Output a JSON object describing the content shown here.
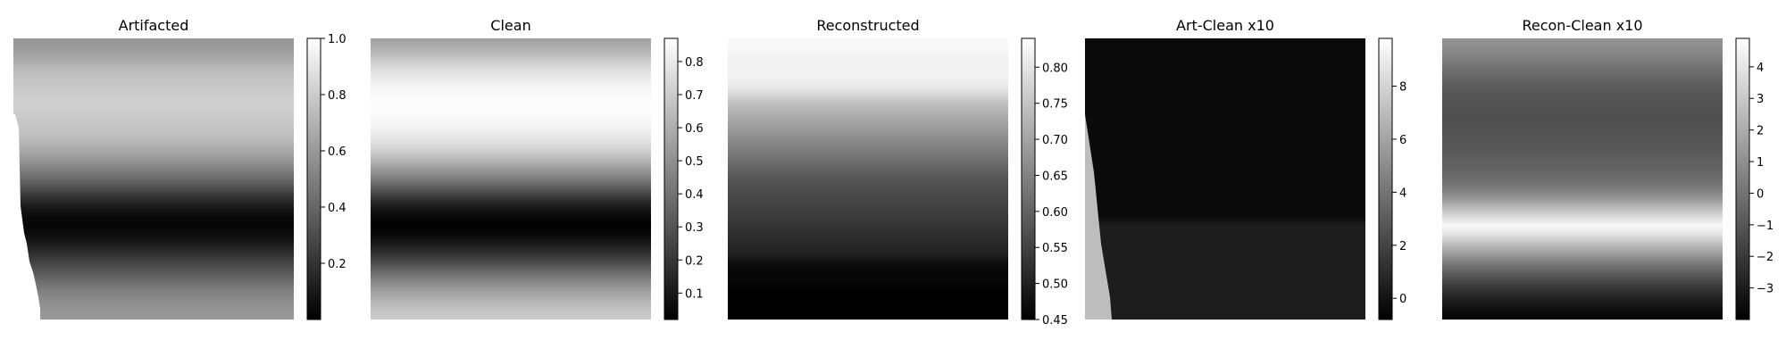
{
  "chart_data": [
    {
      "type": "heatmap",
      "title": "Artifacted",
      "colormap": "gray",
      "colorbar": {
        "range": [
          0.0,
          1.0
        ],
        "ticks": [
          0.2,
          0.4,
          0.6,
          0.8,
          1.0
        ],
        "tick_labels": [
          "0.2",
          "0.4",
          "0.6",
          "0.8",
          "1.0"
        ]
      },
      "profile": [
        0.6,
        0.6,
        0.65,
        0.71,
        0.76,
        0.78,
        0.8,
        0.81,
        0.8,
        0.78,
        0.76,
        0.72,
        0.66,
        0.59,
        0.5,
        0.41,
        0.3,
        0.19,
        0.1,
        0.04,
        0.02,
        0.05,
        0.11,
        0.19,
        0.27,
        0.35,
        0.43,
        0.5,
        0.55,
        0.58,
        0.6
      ],
      "axes_visible": false
    },
    {
      "type": "heatmap",
      "title": "Clean",
      "colormap": "gray",
      "colorbar": {
        "range": [
          0.02,
          0.87
        ],
        "ticks": [
          0.1,
          0.2,
          0.3,
          0.4,
          0.5,
          0.6,
          0.7,
          0.8
        ],
        "tick_labels": [
          "0.1",
          "0.2",
          "0.3",
          "0.4",
          "0.5",
          "0.6",
          "0.7",
          "0.8"
        ]
      },
      "profile": [
        0.55,
        0.6,
        0.67,
        0.74,
        0.79,
        0.83,
        0.85,
        0.86,
        0.86,
        0.84,
        0.81,
        0.77,
        0.71,
        0.63,
        0.53,
        0.43,
        0.32,
        0.2,
        0.11,
        0.05,
        0.02,
        0.05,
        0.11,
        0.19,
        0.28,
        0.38,
        0.47,
        0.55,
        0.62,
        0.67,
        0.7
      ],
      "axes_visible": false
    },
    {
      "type": "heatmap",
      "title": "Reconstructed",
      "colormap": "gray",
      "colorbar": {
        "range": [
          0.45,
          0.84
        ],
        "ticks": [
          0.45,
          0.5,
          0.55,
          0.6,
          0.65,
          0.7,
          0.75,
          0.8
        ],
        "tick_labels": [
          "0.45",
          "0.50",
          "0.55",
          "0.60",
          "0.65",
          "0.70",
          "0.75",
          "0.80"
        ]
      },
      "profile": [
        0.83,
        0.83,
        0.82,
        0.82,
        0.82,
        0.81,
        0.78,
        0.74,
        0.72,
        0.7,
        0.68,
        0.66,
        0.64,
        0.62,
        0.6,
        0.58,
        0.57,
        0.56,
        0.55,
        0.54,
        0.53,
        0.52,
        0.51,
        0.5,
        0.47,
        0.46,
        0.46,
        0.45,
        0.45,
        0.45,
        0.45
      ],
      "axes_visible": false
    },
    {
      "type": "heatmap",
      "title": "Art-Clean x10",
      "colormap": "gray",
      "colorbar": {
        "range": [
          -0.8,
          9.8
        ],
        "ticks": [
          0,
          2,
          4,
          6,
          8
        ],
        "tick_labels": [
          "0",
          "2",
          "4",
          "6",
          "8"
        ]
      },
      "profile": [
        -0.4,
        -0.4,
        -0.4,
        -0.4,
        -0.4,
        -0.4,
        -0.4,
        -0.4,
        -0.4,
        -0.4,
        -0.4,
        -0.4,
        -0.4,
        -0.4,
        -0.4,
        -0.4,
        -0.4,
        -0.4,
        -0.4,
        -0.4,
        0.4,
        0.4,
        0.4,
        0.4,
        0.4,
        0.4,
        0.4,
        0.4,
        0.4,
        0.4,
        0.4
      ],
      "axes_visible": false
    },
    {
      "type": "heatmap",
      "title": "Recon-Clean x10",
      "colormap": "gray",
      "colorbar": {
        "range": [
          -4.0,
          4.9
        ],
        "ticks": [
          -3,
          -2,
          -1,
          0,
          1,
          2,
          3,
          4
        ],
        "tick_labels": [
          "−3",
          "−2",
          "−1",
          "0",
          "1",
          "2",
          "3",
          "4"
        ]
      },
      "profile": [
        1.2,
        0.9,
        0.5,
        0.0,
        -0.4,
        -0.8,
        -1.0,
        -1.1,
        -1.2,
        -1.2,
        -1.1,
        -1.0,
        -0.9,
        -0.7,
        -0.5,
        -0.2,
        0.3,
        1.2,
        2.4,
        3.6,
        4.7,
        3.8,
        2.6,
        1.4,
        0.3,
        -0.7,
        -1.6,
        -2.3,
        -3.0,
        -3.5,
        -3.9
      ],
      "axes_visible": false
    }
  ]
}
